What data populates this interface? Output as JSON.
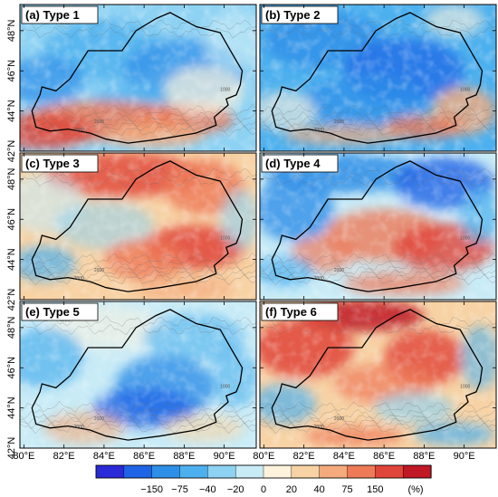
{
  "panels": [
    {
      "id": "a",
      "label": "(a) Type 1",
      "pattern": "south-positive"
    },
    {
      "id": "b",
      "label": "(b) Type 2",
      "pattern": "widespread-negative"
    },
    {
      "id": "c",
      "label": "(c) Type 3",
      "pattern": "widespread-positive"
    },
    {
      "id": "d",
      "label": "(d) Type 4",
      "pattern": "north-negative-center-positive"
    },
    {
      "id": "e",
      "label": "(e) Type 5",
      "pattern": "center-negative"
    },
    {
      "id": "f",
      "label": "(f) Type 6",
      "pattern": "north-center-positive"
    }
  ],
  "axes": {
    "lat_ticks": [
      "42°N",
      "44°N",
      "46°N",
      "48°N"
    ],
    "lon_ticks": [
      "80°E",
      "82°E",
      "84°E",
      "86°E",
      "88°E",
      "90°E"
    ],
    "lat_range": [
      42,
      49.3
    ],
    "lon_range": [
      79.8,
      91.6
    ]
  },
  "contour_labels": [
    "1000",
    "2000",
    "3000"
  ],
  "colorbar": {
    "labels": [
      "−150",
      "−75",
      "−40",
      "−20",
      "0",
      "20",
      "40",
      "75",
      "150",
      "(%)"
    ],
    "colors": [
      "#2a2ad6",
      "#1f64e6",
      "#2e8fe8",
      "#4db0ee",
      "#8ed2f3",
      "#c8ebf6",
      "#fdf2dc",
      "#f7d2a4",
      "#f4aa7c",
      "#ee7a58",
      "#e0453a",
      "#c01824"
    ]
  }
}
